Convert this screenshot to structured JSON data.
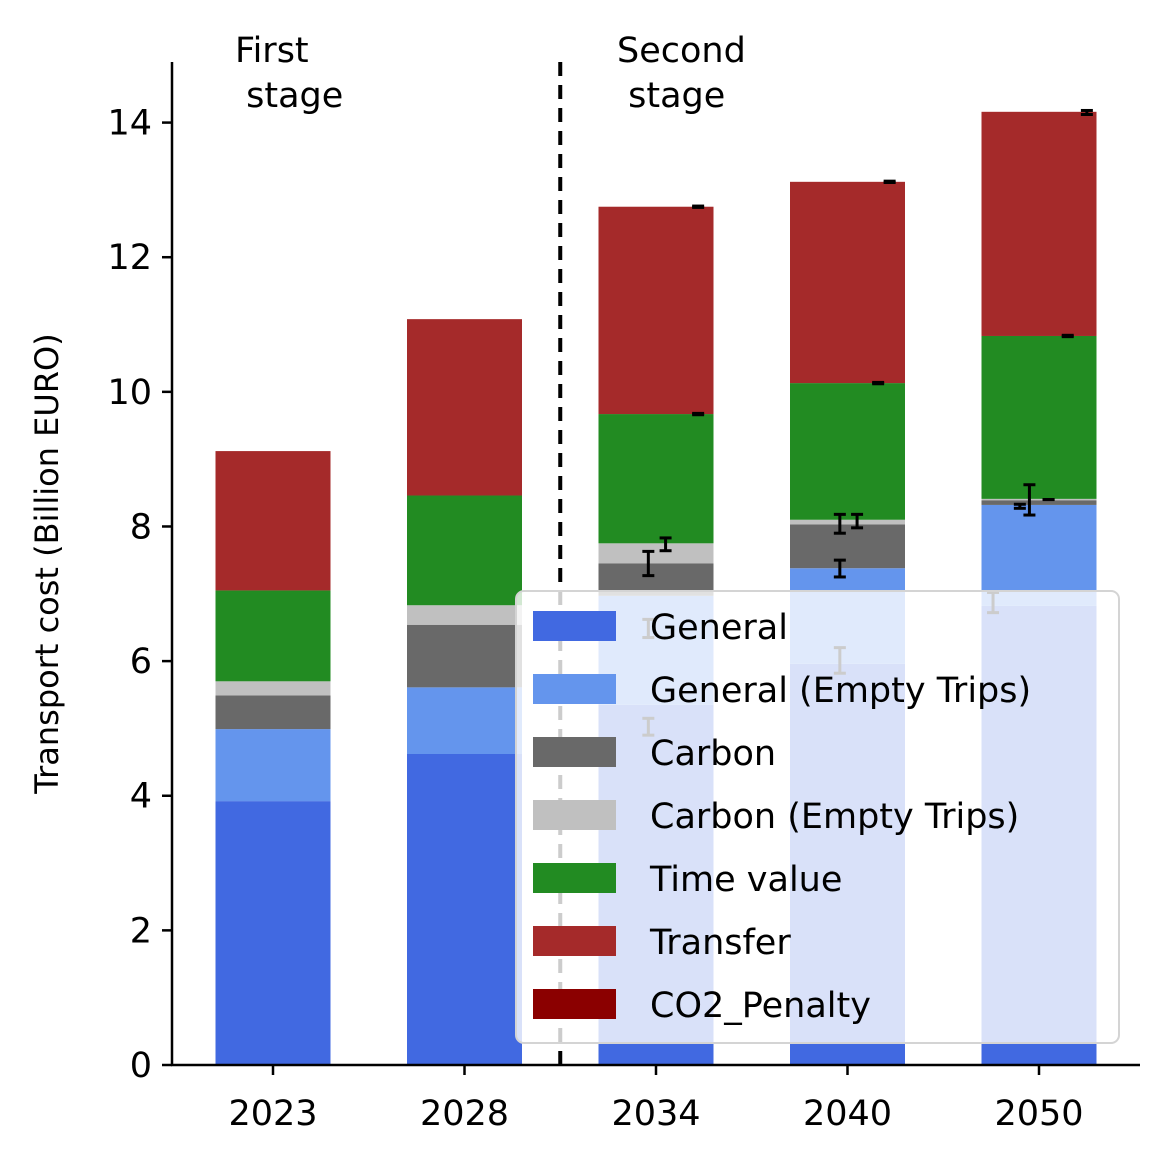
{
  "chart_data": {
    "type": "bar",
    "stacked": true,
    "categories": [
      "2023",
      "2028",
      "2034",
      "2040",
      "2050"
    ],
    "ylabel": "Transport cost (Billion EURO)",
    "xlabel": "",
    "ylim": [
      0,
      14.9
    ],
    "yticks": [
      0,
      2,
      4,
      6,
      8,
      10,
      12,
      14
    ],
    "grid": false,
    "legend_position": "lower-right",
    "stage_divider_after_category": "2028",
    "stage_labels": [
      "First\n stage",
      "Second\n stage"
    ],
    "series": [
      {
        "name": "General",
        "color": "#4169E1",
        "values": [
          3.92,
          4.62,
          5.35,
          5.96,
          6.82
        ]
      },
      {
        "name": "General (Empty Trips)",
        "color": "#6495ED",
        "values": [
          1.07,
          0.99,
          1.62,
          1.42,
          1.5
        ]
      },
      {
        "name": "Carbon",
        "color": "#696969",
        "values": [
          0.5,
          0.93,
          0.48,
          0.65,
          0.07
        ]
      },
      {
        "name": "Carbon (Empty Trips)",
        "color": "#C0C0C0",
        "values": [
          0.21,
          0.29,
          0.3,
          0.07,
          0.02
        ]
      },
      {
        "name": "Time value",
        "color": "#228B22",
        "values": [
          1.35,
          1.63,
          1.92,
          2.03,
          2.42
        ]
      },
      {
        "name": "Transfer",
        "color": "#A52A2A",
        "values": [
          2.07,
          2.62,
          3.08,
          2.99,
          3.33
        ]
      },
      {
        "name": "CO2_Penalty",
        "color": "#8B0000",
        "values": [
          0,
          0,
          0,
          0,
          0
        ]
      }
    ],
    "error_bars": [
      {
        "category": "2034",
        "offset": -0.04,
        "value": 5.0,
        "low": 4.9,
        "high": 5.15
      },
      {
        "category": "2034",
        "offset": -0.04,
        "value": 6.45,
        "low": 6.35,
        "high": 6.62
      },
      {
        "category": "2034",
        "offset": -0.04,
        "value": 7.45,
        "low": 7.27,
        "high": 7.63
      },
      {
        "category": "2034",
        "offset": 0.05,
        "value": 7.72,
        "low": 7.64,
        "high": 7.83
      },
      {
        "category": "2034",
        "offset": 0.22,
        "value": 9.67,
        "low": 9.66,
        "high": 9.68
      },
      {
        "category": "2034",
        "offset": 0.22,
        "value": 12.75,
        "low": 12.74,
        "high": 12.76
      },
      {
        "category": "2040",
        "offset": -0.04,
        "value": 6.0,
        "low": 5.82,
        "high": 6.2
      },
      {
        "category": "2040",
        "offset": -0.04,
        "value": 7.35,
        "low": 7.25,
        "high": 7.5
      },
      {
        "category": "2040",
        "offset": -0.04,
        "value": 8.03,
        "low": 7.9,
        "high": 8.18
      },
      {
        "category": "2040",
        "offset": 0.05,
        "value": 8.08,
        "low": 7.98,
        "high": 8.18
      },
      {
        "category": "2040",
        "offset": 0.16,
        "value": 10.13,
        "low": 10.12,
        "high": 10.14
      },
      {
        "category": "2040",
        "offset": 0.22,
        "value": 13.12,
        "low": 13.11,
        "high": 13.13
      },
      {
        "category": "2050",
        "offset": -0.24,
        "value": 6.88,
        "low": 6.72,
        "high": 7.02
      },
      {
        "category": "2050",
        "offset": -0.1,
        "value": 8.3,
        "low": 8.27,
        "high": 8.33
      },
      {
        "category": "2050",
        "offset": -0.05,
        "value": 8.4,
        "low": 8.17,
        "high": 8.62
      },
      {
        "category": "2050",
        "offset": 0.05,
        "value": 8.4,
        "low": 8.4,
        "high": 8.4
      },
      {
        "category": "2050",
        "offset": 0.15,
        "value": 10.83,
        "low": 10.82,
        "high": 10.84
      },
      {
        "category": "2050",
        "offset": 0.25,
        "value": 14.15,
        "low": 14.12,
        "high": 14.18
      }
    ]
  }
}
